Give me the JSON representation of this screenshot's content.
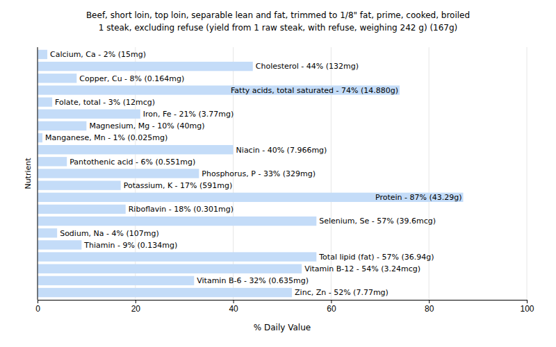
{
  "chart_data": {
    "type": "bar",
    "orientation": "horizontal",
    "title": "Beef, short loin, top loin, separable lean and fat, trimmed to 1/8\" fat, prime, cooked, broiled",
    "subtitle": "1 steak, excluding refuse (yield from 1 raw steak, with refuse, weighing 242 g) (167g)",
    "x_label": "% Daily Value",
    "y_label": "Nutrient",
    "categories": [
      null,
      null,
      null,
      null,
      null,
      null,
      null,
      null,
      null,
      null,
      null,
      null,
      null,
      null,
      null,
      null,
      null,
      null,
      null,
      null,
      null
    ],
    "values": [
      2,
      44,
      8,
      74,
      3,
      21,
      10,
      1,
      40,
      6,
      33,
      17,
      87,
      18,
      57,
      4,
      9,
      57,
      54,
      32,
      52
    ],
    "value_labels": [
      "Calcium, Ca - 2% (15mg)",
      "Cholesterol - 44% (132mg)",
      "Copper, Cu - 8% (0.164mg)",
      "Fatty acids, total saturated - 74% (14.880g)",
      "Folate, total - 3% (12mcg)",
      "Iron, Fe - 21% (3.77mg)",
      "Magnesium, Mg - 10% (40mg)",
      "Manganese, Mn - 1% (0.025mg)",
      "Niacin - 40% (7.966mg)",
      "Pantothenic acid - 6% (0.551mg)",
      "Phosphorus, P - 33% (329mg)",
      "Potassium, K - 17% (591mg)",
      "Protein - 87% (43.29g)",
      "Riboflavin - 18% (0.301mg)",
      "Selenium, Se - 57% (39.6mcg)",
      "Sodium, Na - 4% (107mg)",
      "Thiamin - 9% (0.134mg)",
      "Total lipid (fat) - 57% (36.94g)",
      "Vitamin B-12 - 54% (3.24mcg)",
      "Vitamin B-6 - 32% (0.635mg)",
      "Zinc, Zn - 52% (7.77mg)"
    ],
    "data_labels": true,
    "color": "#c4dcf8",
    "xlim": [
      0,
      100
    ],
    "xticks": [
      0,
      20,
      40,
      60,
      80,
      100
    ],
    "grid": true,
    "tick_labels": "x"
  }
}
